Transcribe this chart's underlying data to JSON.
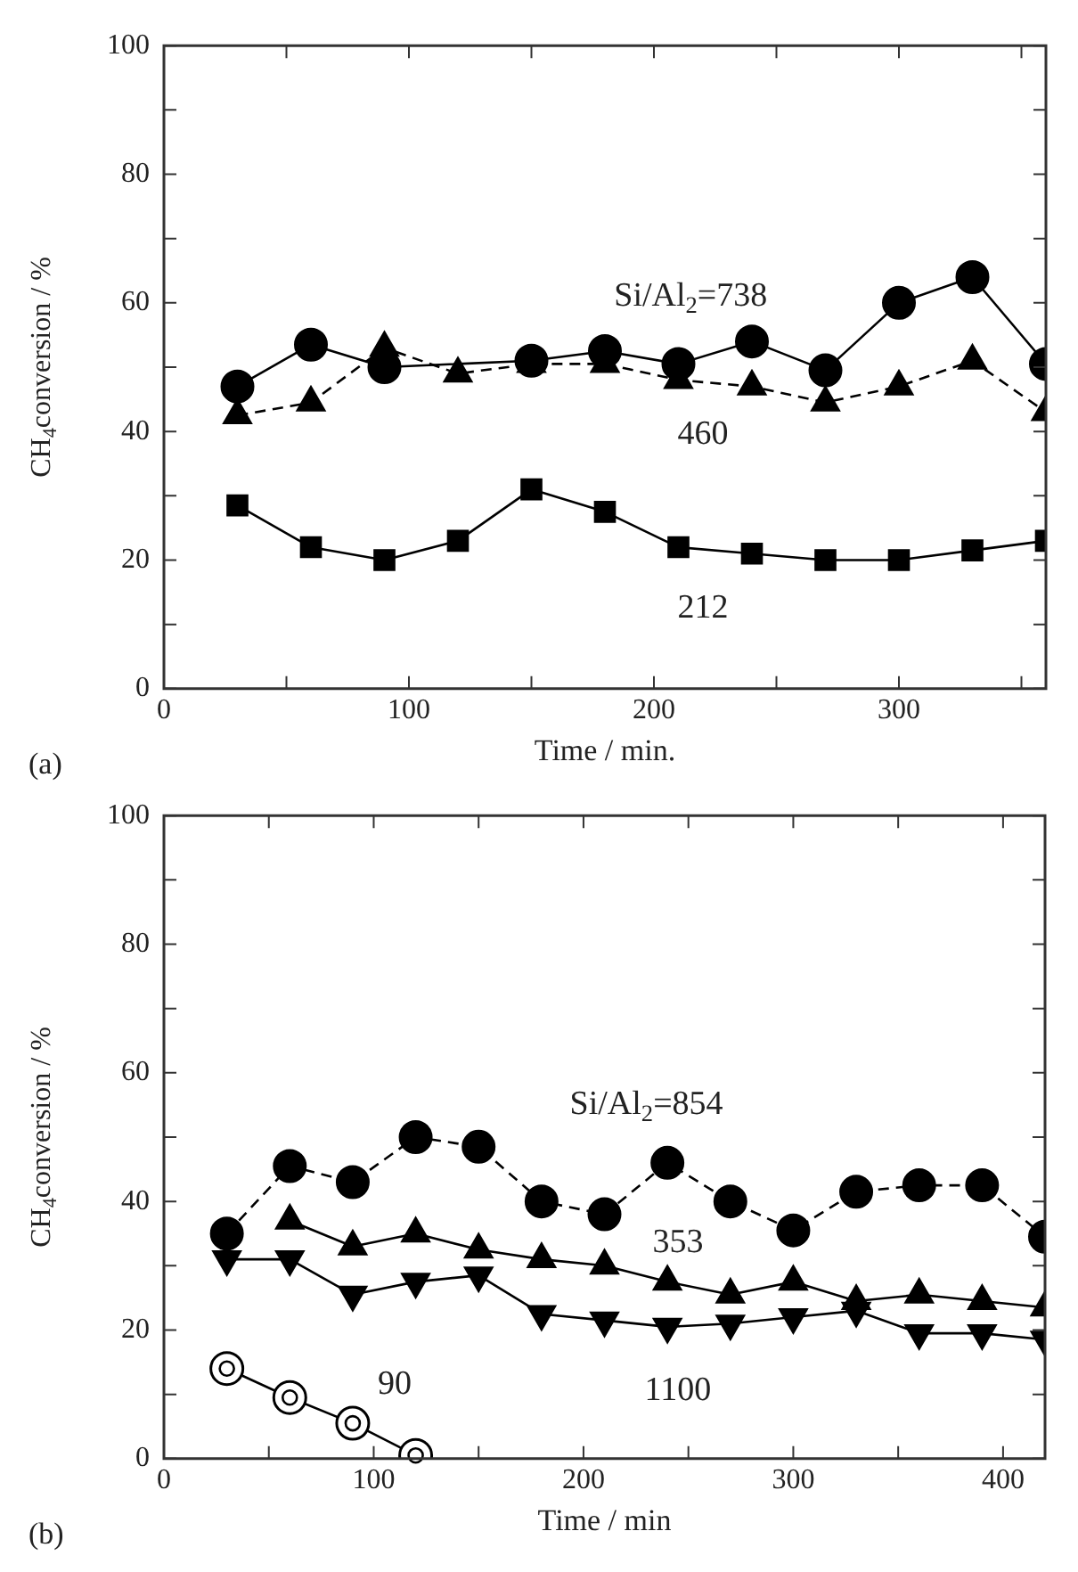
{
  "chart_data": [
    {
      "type": "line",
      "xlabel": "Time / min.",
      "ylabel": "CH$_{4}$conversion / %",
      "annotations": [
        "(a)"
      ],
      "xlim": [
        0,
        360
      ],
      "xticks": [
        0,
        {
          "value": 50,
          "label": null
        },
        100,
        {
          "value": 150,
          "label": null
        },
        200,
        {
          "value": 250,
          "label": null
        },
        300,
        {
          "value": 350,
          "label": null
        }
      ],
      "ylim": [
        0,
        100
      ],
      "yticks": [
        0,
        {
          "value": 10,
          "label": null
        },
        20,
        {
          "value": 30,
          "label": null
        },
        40,
        {
          "value": 50,
          "label": null
        },
        60,
        {
          "value": 70,
          "label": null
        },
        80,
        {
          "value": 90,
          "label": null
        },
        100
      ],
      "grid": false,
      "legend": false,
      "series": [
        {
          "name": "Si/Al$_{2}$=738",
          "color": "#000000",
          "marker": "circle",
          "line_style": "solid",
          "x": [
            30,
            60,
            90,
            150,
            180,
            210,
            240,
            270,
            300,
            330,
            360
          ],
          "values": [
            47,
            53.5,
            50,
            51,
            52.5,
            50.5,
            54,
            49.5,
            60,
            64,
            50.5
          ]
        },
        {
          "name": "460",
          "color": "#000000",
          "marker": "triangle",
          "line_style": "dashed",
          "x": [
            30,
            60,
            90,
            120,
            150,
            180,
            210,
            240,
            270,
            300,
            330,
            360
          ],
          "values": [
            42.5,
            44.5,
            53,
            49,
            50.5,
            50.5,
            48,
            47,
            44.5,
            47,
            51,
            43
          ]
        },
        {
          "name": "212",
          "color": "#000000",
          "marker": "square",
          "line_style": "solid",
          "x": [
            30,
            60,
            90,
            120,
            150,
            180,
            210,
            240,
            270,
            300,
            330,
            360
          ],
          "values": [
            28.5,
            22,
            20,
            23,
            31,
            27.5,
            22,
            21,
            20,
            20,
            21.5,
            23
          ]
        }
      ]
    },
    {
      "type": "line",
      "xlabel": "Time / min",
      "ylabel": "CH$_{4}$conversion / %",
      "annotations": [
        "(b)"
      ],
      "xlim": [
        0,
        420
      ],
      "xticks": [
        0,
        {
          "value": 50,
          "label": null
        },
        100,
        {
          "value": 150,
          "label": null
        },
        200,
        {
          "value": 250,
          "label": null
        },
        300,
        {
          "value": 350,
          "label": null
        },
        400
      ],
      "ylim": [
        0,
        100
      ],
      "yticks": [
        0,
        {
          "value": 10,
          "label": null
        },
        20,
        {
          "value": 30,
          "label": null
        },
        40,
        {
          "value": 50,
          "label": null
        },
        60,
        {
          "value": 70,
          "label": null
        },
        80,
        {
          "value": 90,
          "label": null
        },
        100
      ],
      "grid": false,
      "legend": false,
      "series": [
        {
          "name": "Si/Al$_{2}$=854",
          "color": "#000000",
          "marker": "circle",
          "line_style": "dashed",
          "x": [
            30,
            60,
            90,
            120,
            150,
            180,
            210,
            240,
            270,
            300,
            330,
            360,
            390,
            420
          ],
          "values": [
            35,
            45.5,
            43,
            50,
            48.5,
            40,
            38,
            46,
            40,
            35.5,
            41.5,
            42.5,
            42.5,
            34.5
          ]
        },
        {
          "name": "353",
          "color": "#000000",
          "marker": "triangle",
          "line_style": "solid",
          "x": [
            60,
            90,
            120,
            150,
            180,
            210,
            240,
            270,
            300,
            330,
            360,
            390,
            420
          ],
          "values": [
            37,
            33,
            35,
            32.5,
            31,
            30,
            27.5,
            25.5,
            27.5,
            24.5,
            25.5,
            24.5,
            23.5
          ]
        },
        {
          "name": "1100",
          "color": "#000000",
          "marker": "triangle-down",
          "line_style": "solid",
          "x": [
            30,
            60,
            90,
            120,
            150,
            180,
            210,
            240,
            270,
            300,
            330,
            360,
            390,
            420
          ],
          "values": [
            31,
            31,
            25.5,
            27.5,
            28.5,
            22.5,
            21.5,
            20.5,
            21,
            22,
            23,
            19.5,
            19.5,
            18.5
          ]
        },
        {
          "name": "90",
          "color": "#ffffff",
          "marker": "circle",
          "line_style": "solid",
          "x": [
            30,
            60,
            90,
            120
          ],
          "values": [
            14,
            9.5,
            5.5,
            0.5
          ]
        }
      ]
    }
  ]
}
